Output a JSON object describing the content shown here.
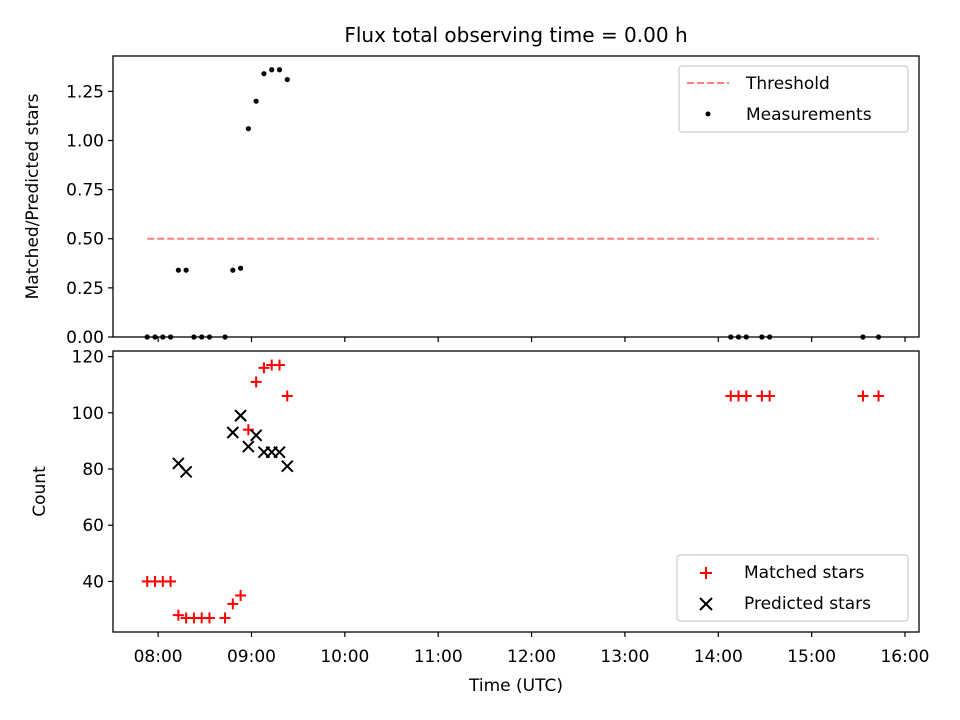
{
  "figure": {
    "title": "Flux total observing time = 0.00 h",
    "xlabel": "Time (UTC)"
  },
  "colors": {
    "threshold": "#ff7f7f",
    "measurements": "#000000",
    "matched": "#ff0000",
    "predicted": "#000000",
    "axes": "#000000"
  },
  "x_ticks": [
    "08:00",
    "09:00",
    "10:00",
    "11:00",
    "12:00",
    "13:00",
    "14:00",
    "15:00",
    "16:00"
  ],
  "chart_data": [
    {
      "type": "scatter",
      "title": "Flux total observing time = 0.00 h",
      "xlabel": "",
      "ylabel": "Matched/Predicted stars",
      "xlim": [
        "07:31",
        "16:09"
      ],
      "ylim": [
        0,
        1.43
      ],
      "y_ticks": [
        "0.00",
        "0.25",
        "0.50",
        "0.75",
        "1.00",
        "1.25"
      ],
      "legend": {
        "placement": "top-right",
        "entries": [
          "Threshold",
          "Measurements"
        ]
      },
      "threshold": {
        "name": "Threshold",
        "value": 0.5,
        "x_start": "07:53",
        "x_end": "15:43"
      },
      "series": [
        {
          "name": "Measurements",
          "marker": "dot",
          "points": [
            [
              "07:53",
              0
            ],
            [
              "07:58",
              0
            ],
            [
              "08:03",
              0
            ],
            [
              "08:08",
              0
            ],
            [
              "08:13",
              0.34
            ],
            [
              "08:18",
              0.34
            ],
            [
              "08:23",
              0
            ],
            [
              "08:28",
              0
            ],
            [
              "08:33",
              0
            ],
            [
              "08:43",
              0
            ],
            [
              "08:48",
              0.34
            ],
            [
              "08:53",
              0.35
            ],
            [
              "08:58",
              1.06
            ],
            [
              "09:03",
              1.2
            ],
            [
              "09:08",
              1.34
            ],
            [
              "09:13",
              1.36
            ],
            [
              "09:18",
              1.36
            ],
            [
              "09:23",
              1.31
            ],
            [
              "14:08",
              0
            ],
            [
              "14:13",
              0
            ],
            [
              "14:18",
              0
            ],
            [
              "14:28",
              0
            ],
            [
              "14:33",
              0
            ],
            [
              "15:33",
              0
            ],
            [
              "15:43",
              0
            ]
          ]
        }
      ]
    },
    {
      "type": "scatter",
      "xlabel": "Time (UTC)",
      "ylabel": "Count",
      "xlim": [
        "07:31",
        "16:09"
      ],
      "ylim": [
        22,
        122
      ],
      "y_ticks": [
        "40",
        "60",
        "80",
        "100",
        "120"
      ],
      "legend": {
        "placement": "bottom-right",
        "entries": [
          "Matched stars",
          "Predicted stars"
        ]
      },
      "series": [
        {
          "name": "Matched stars",
          "marker": "plus",
          "points": [
            [
              "07:53",
              40
            ],
            [
              "07:58",
              40
            ],
            [
              "08:03",
              40
            ],
            [
              "08:08",
              40
            ],
            [
              "08:13",
              28
            ],
            [
              "08:18",
              27
            ],
            [
              "08:23",
              27
            ],
            [
              "08:28",
              27
            ],
            [
              "08:33",
              27
            ],
            [
              "08:43",
              27
            ],
            [
              "08:48",
              32
            ],
            [
              "08:53",
              35
            ],
            [
              "08:58",
              94
            ],
            [
              "09:03",
              111
            ],
            [
              "09:08",
              116
            ],
            [
              "09:13",
              117
            ],
            [
              "09:18",
              117
            ],
            [
              "09:23",
              106
            ],
            [
              "14:08",
              106
            ],
            [
              "14:13",
              106
            ],
            [
              "14:18",
              106
            ],
            [
              "14:28",
              106
            ],
            [
              "14:33",
              106
            ],
            [
              "15:33",
              106
            ],
            [
              "15:43",
              106
            ]
          ]
        },
        {
          "name": "Predicted stars",
          "marker": "x",
          "points": [
            [
              "08:13",
              82
            ],
            [
              "08:18",
              79
            ],
            [
              "08:48",
              93
            ],
            [
              "08:53",
              99
            ],
            [
              "08:58",
              88
            ],
            [
              "09:03",
              92
            ],
            [
              "09:08",
              86
            ],
            [
              "09:13",
              86
            ],
            [
              "09:18",
              86
            ],
            [
              "09:23",
              81
            ]
          ]
        }
      ]
    }
  ]
}
